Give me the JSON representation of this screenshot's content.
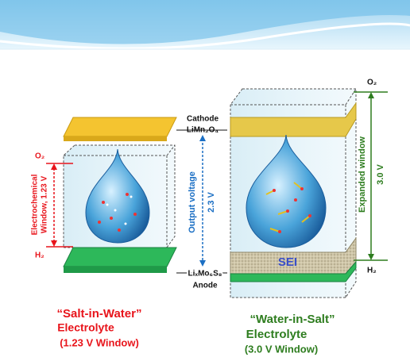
{
  "labels": {
    "cathode": "Cathode",
    "cathode_material": "LiMn₂O₄",
    "anode_material": "LiₓMo₆S₈",
    "anode": "Anode",
    "output_voltage": "Output voltage",
    "output_value": "2.3 V"
  },
  "left": {
    "o2": "O₂",
    "h2": "H₂",
    "window": [
      "Electrochemical",
      "Window, 1.23 V"
    ],
    "caption": [
      "“Salt-in-Water”",
      "Electrolyte",
      "(1.23 V Window)"
    ]
  },
  "right": {
    "o2": "O₂",
    "h2": "H₂",
    "window": "Expanded window",
    "window_value": "3.0 V",
    "sei": "SEI",
    "caption": [
      "“Water-in-Salt”",
      "Electrolyte",
      "(3.0 V Window)"
    ]
  }
}
